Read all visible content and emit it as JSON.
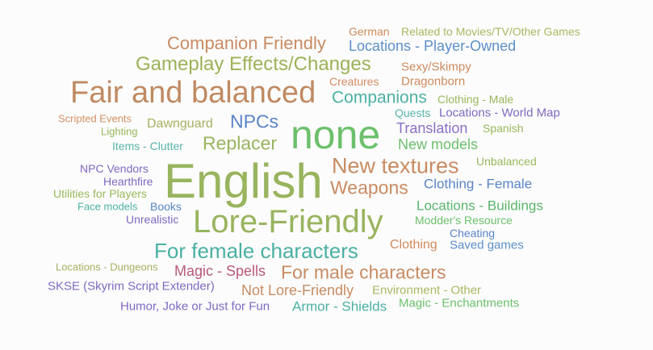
{
  "words": [
    {
      "text": "German",
      "color": "#d08a5c"
    },
    {
      "text": "Related to Movies/TV/Other Games",
      "color": "#a8b860"
    },
    {
      "text": "Companion Friendly",
      "color": "#c88b62"
    },
    {
      "text": "Locations - Player-Owned",
      "color": "#5b8fc9"
    },
    {
      "text": "Gameplay Effects/Changes",
      "color": "#9bb256"
    },
    {
      "text": "Sexy/Skimpy",
      "color": "#cc8a5e"
    },
    {
      "text": "Fair and balanced",
      "color": "#c08a62"
    },
    {
      "text": "Creatures",
      "color": "#d28a62"
    },
    {
      "text": "Dragonborn",
      "color": "#cc8a5e"
    },
    {
      "text": "Companions",
      "color": "#4ab0a2"
    },
    {
      "text": "Clothing - Male",
      "color": "#98b85a"
    },
    {
      "text": "Scripted Events",
      "color": "#d49062"
    },
    {
      "text": "Quests",
      "color": "#58b4a8"
    },
    {
      "text": "Locations - World Map",
      "color": "#7f68c0"
    },
    {
      "text": "Lighting",
      "color": "#98b85a"
    },
    {
      "text": "Dawnguard",
      "color": "#a8b060"
    },
    {
      "text": "NPCs",
      "color": "#5a84c8"
    },
    {
      "text": "none",
      "color": "#6cc06c"
    },
    {
      "text": "Translation",
      "color": "#8a6fc6"
    },
    {
      "text": "Spanish",
      "color": "#98b85a"
    },
    {
      "text": "Items - Clutter",
      "color": "#58b4a8"
    },
    {
      "text": "Replacer",
      "color": "#98b45e"
    },
    {
      "text": "New models",
      "color": "#6cc06c"
    },
    {
      "text": "Unbalanced",
      "color": "#98b85a"
    },
    {
      "text": "NPC Vendors",
      "color": "#7f68c0"
    },
    {
      "text": "English",
      "color": "#98b45e"
    },
    {
      "text": "New textures",
      "color": "#c88b62"
    },
    {
      "text": "Hearthfire",
      "color": "#7f68c0"
    },
    {
      "text": "Clothing - Female",
      "color": "#5a84c8"
    },
    {
      "text": "Utilities for Players",
      "color": "#98b85a"
    },
    {
      "text": "Weapons",
      "color": "#c88b62"
    },
    {
      "text": "Face models",
      "color": "#4ab0a2"
    },
    {
      "text": "Books",
      "color": "#5a84c8"
    },
    {
      "text": "Locations - Buildings",
      "color": "#58b46a"
    },
    {
      "text": "Unrealistic",
      "color": "#7f68c0"
    },
    {
      "text": "Lore-Friendly",
      "color": "#98b45e"
    },
    {
      "text": "Modder's Resource",
      "color": "#6cc06c"
    },
    {
      "text": "Cheating",
      "color": "#5a84c8"
    },
    {
      "text": "For female characters",
      "color": "#4ab0a2"
    },
    {
      "text": "Clothing",
      "color": "#d08a5c"
    },
    {
      "text": "Saved games",
      "color": "#5b8fc9"
    },
    {
      "text": "Locations - Dungeons",
      "color": "#a8b060"
    },
    {
      "text": "Magic - Spells",
      "color": "#b85a7a"
    },
    {
      "text": "For male characters",
      "color": "#c88b62"
    },
    {
      "text": "SKSE (Skyrim Script Extender)",
      "color": "#7f68c0"
    },
    {
      "text": "Not Lore-Friendly",
      "color": "#c88b62"
    },
    {
      "text": "Environment - Other",
      "color": "#a8b860"
    },
    {
      "text": "Humor, Joke or Just for Fun",
      "color": "#7f68c0"
    },
    {
      "text": "Armor - Shields",
      "color": "#4ab0a2"
    },
    {
      "text": "Magic - Enchantments",
      "color": "#6cc06c"
    }
  ]
}
